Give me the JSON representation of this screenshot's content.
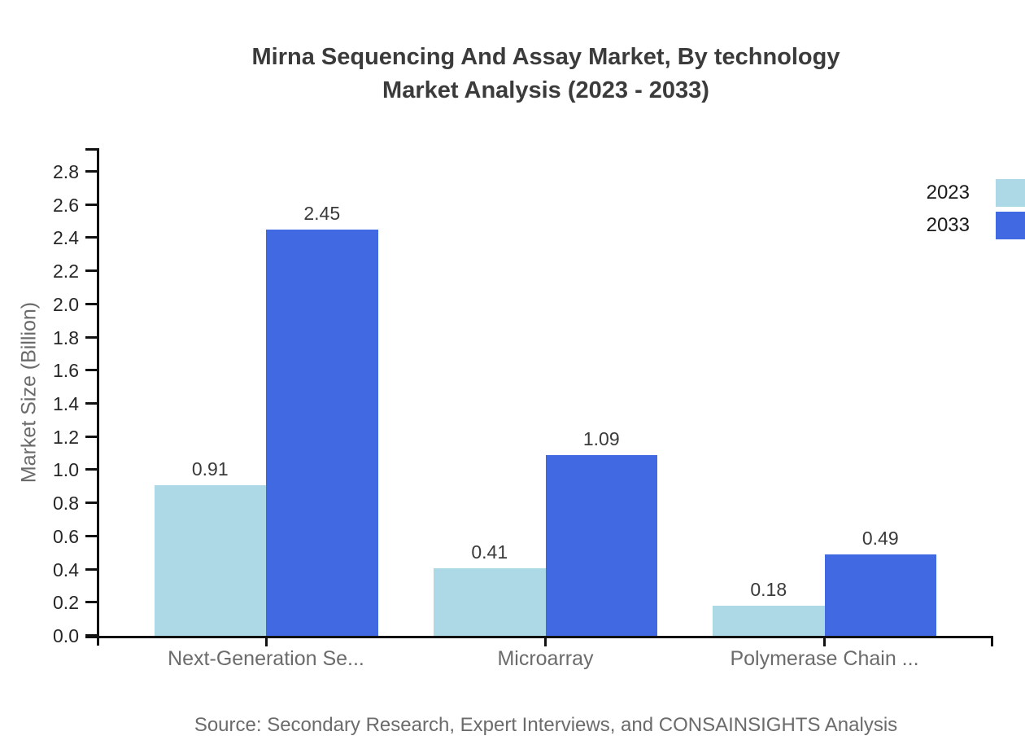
{
  "title": {
    "line1": "Mirna Sequencing And Assay Market, By technology",
    "line2": "Market Analysis (2023 - 2033)"
  },
  "source": "Source: Secondary Research, Expert Interviews, and CONSAINSIGHTS Analysis",
  "chart_data": {
    "type": "bar",
    "title": "Mirna Sequencing And Assay Market, By technology Market Analysis (2023 - 2033)",
    "categories": [
      "Next-Generation Se...",
      "Microarray",
      "Polymerase Chain ..."
    ],
    "series": [
      {
        "name": "2023",
        "color": "#ADD8E6",
        "values": [
          0.91,
          0.41,
          0.18
        ]
      },
      {
        "name": "2033",
        "color": "#4169E1",
        "values": [
          2.45,
          1.09,
          0.49
        ]
      }
    ],
    "xlabel": "",
    "ylabel": "Market Size (Billion)",
    "ylim": [
      0,
      2.94
    ],
    "ytick_step": 0.2,
    "ytick_min": 0.0,
    "ytick_max": 2.8,
    "grid": false,
    "legend_position": "top-right",
    "value_labels_shown": true
  },
  "colors": {
    "axis": "#111111",
    "title_text": "#3b3b3b",
    "tick_text": "#262626",
    "value_text": "#3a3a3a",
    "muted_text": "#6b6b6b",
    "series_2023": "#ADD8E6",
    "series_2033": "#4169E1"
  }
}
